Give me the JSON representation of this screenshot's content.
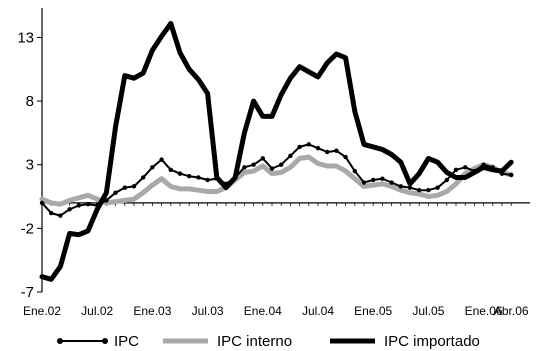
{
  "chart_data": {
    "type": "line",
    "title": "",
    "xlabel": "",
    "ylabel": "",
    "ylim": [
      -7,
      15
    ],
    "yticks": [
      -7,
      -2,
      3,
      8,
      13
    ],
    "grid": false,
    "legend_position": "bottom",
    "xtick_labels": [
      {
        "label": "Ene.02",
        "index": 0
      },
      {
        "label": "Jul.02",
        "index": 6
      },
      {
        "label": "Ene.03",
        "index": 12
      },
      {
        "label": "Jul.03",
        "index": 18
      },
      {
        "label": "Ene.04",
        "index": 24
      },
      {
        "label": "Jul.04",
        "index": 30
      },
      {
        "label": "Ene.05",
        "index": 36
      },
      {
        "label": "Jul.05",
        "index": 42
      },
      {
        "label": "Ene.06",
        "index": 48
      },
      {
        "label": "Abr.06",
        "index": 51
      }
    ],
    "series": [
      {
        "name": "IPC",
        "color": "#000000",
        "marker": "circle",
        "values": [
          0,
          -0.8,
          -1,
          -0.5,
          -0.2,
          -0.1,
          -0.2,
          0.2,
          0.8,
          1.2,
          1.3,
          2,
          2.8,
          3.4,
          2.6,
          2.3,
          2.1,
          2,
          1.8,
          1.9,
          1.5,
          2,
          2.8,
          3,
          3.5,
          2.7,
          3,
          3.7,
          4.4,
          4.6,
          4.3,
          4,
          4.1,
          3.6,
          2.5,
          1.6,
          1.8,
          1.9,
          1.6,
          1.3,
          1.2,
          1,
          1,
          1.2,
          1.8,
          2.6,
          2.8,
          2.5,
          3,
          2.8,
          2.3,
          2.2
        ]
      },
      {
        "name": "IPC interno",
        "color": "#a9a9a9",
        "marker": "none",
        "values": [
          0.3,
          0,
          -0.1,
          0.2,
          0.4,
          0.6,
          0.3,
          0,
          0.1,
          0.2,
          0.3,
          0.8,
          1.4,
          1.9,
          1.3,
          1.1,
          1.1,
          1,
          0.9,
          0.9,
          1.2,
          1.8,
          2.4,
          2.5,
          2.9,
          2.3,
          2.4,
          2.8,
          3.5,
          3.6,
          3.1,
          2.9,
          2.9,
          2.5,
          1.9,
          1.3,
          1.4,
          1.5,
          1.3,
          1,
          0.8,
          0.7,
          0.5,
          0.6,
          0.9,
          1.5,
          2.3,
          2.7,
          3,
          2.8,
          2.4,
          2.2
        ]
      },
      {
        "name": "IPC importado",
        "color": "#000000",
        "marker": "none",
        "values": [
          -5.8,
          -6.0,
          -5.0,
          -2.4,
          -2.5,
          -2.2,
          -0.5,
          0.8,
          6.0,
          10.0,
          9.8,
          10.2,
          12.0,
          13.1,
          14.1,
          11.8,
          10.5,
          9.7,
          8.6,
          2.0,
          1.2,
          2.0,
          5.5,
          8.0,
          6.8,
          6.8,
          8.5,
          9.8,
          10.7,
          10.3,
          9.9,
          11.0,
          11.7,
          11.4,
          7.2,
          4.6,
          4.4,
          4.2,
          3.8,
          3.2,
          1.5,
          2.3,
          3.5,
          3.2,
          2.4,
          2.0,
          2.0,
          2.4,
          2.8,
          2.6,
          2.5,
          3.2
        ]
      }
    ]
  }
}
